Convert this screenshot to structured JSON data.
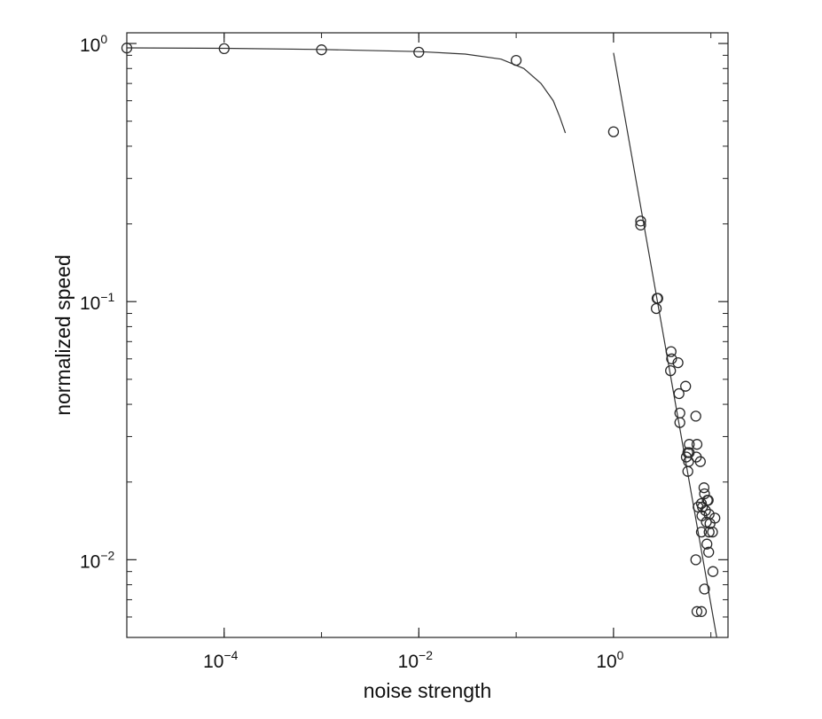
{
  "chart_data": {
    "type": "scatter",
    "title": "",
    "xlabel": "noise strength",
    "ylabel": "normalized speed",
    "x_scale": "log",
    "y_scale": "log",
    "xlim": [
      1e-05,
      15
    ],
    "ylim": [
      0.005,
      1.1
    ],
    "grid": false,
    "x_ticks": [
      {
        "value": 0.0001,
        "base": "10",
        "exp": "−4"
      },
      {
        "value": 0.01,
        "base": "10",
        "exp": "−2"
      },
      {
        "value": 1,
        "base": "10",
        "exp": "0"
      }
    ],
    "y_ticks": [
      {
        "value": 1,
        "base": "10",
        "exp": "0"
      },
      {
        "value": 0.1,
        "base": "10",
        "exp": "−1"
      },
      {
        "value": 0.01,
        "base": "10",
        "exp": "−2"
      }
    ],
    "colors": {
      "markers": "#2a2a2a",
      "lines": "#333333",
      "axes": "#222222"
    },
    "series": [
      {
        "type": "scatter",
        "marker": "open-circle",
        "points": [
          [
            1e-05,
            0.96
          ],
          [
            0.0001,
            0.955
          ],
          [
            0.001,
            0.945
          ],
          [
            0.01,
            0.925
          ],
          [
            0.1,
            0.86
          ],
          [
            1.0,
            0.455
          ],
          [
            1.9,
            0.205
          ],
          [
            1.9,
            0.198
          ],
          [
            2.8,
            0.103
          ],
          [
            2.85,
            0.103
          ],
          [
            2.75,
            0.094
          ],
          [
            3.9,
            0.064
          ],
          [
            3.95,
            0.06
          ],
          [
            3.85,
            0.054
          ],
          [
            4.6,
            0.058
          ],
          [
            5.5,
            0.047
          ],
          [
            4.7,
            0.044
          ],
          [
            4.8,
            0.037
          ],
          [
            4.8,
            0.034
          ],
          [
            7.0,
            0.036
          ],
          [
            6.0,
            0.028
          ],
          [
            5.8,
            0.026
          ],
          [
            6.0,
            0.026
          ],
          [
            7.2,
            0.028
          ],
          [
            5.6,
            0.025
          ],
          [
            5.9,
            0.024
          ],
          [
            7.1,
            0.025
          ],
          [
            7.8,
            0.024
          ],
          [
            5.8,
            0.022
          ],
          [
            8.5,
            0.019
          ],
          [
            8.6,
            0.018
          ],
          [
            9.2,
            0.017
          ],
          [
            9.4,
            0.017
          ],
          [
            7.4,
            0.016
          ],
          [
            8.0,
            0.0165
          ],
          [
            8.2,
            0.016
          ],
          [
            8.8,
            0.0155
          ],
          [
            9.6,
            0.015
          ],
          [
            8.1,
            0.0148
          ],
          [
            11.0,
            0.0145
          ],
          [
            9.0,
            0.014
          ],
          [
            9.8,
            0.0138
          ],
          [
            8.0,
            0.0128
          ],
          [
            9.6,
            0.0128
          ],
          [
            10.4,
            0.0128
          ],
          [
            9.1,
            0.0115
          ],
          [
            9.5,
            0.0107
          ],
          [
            7.0,
            0.01
          ],
          [
            10.5,
            0.009
          ],
          [
            8.6,
            0.0077
          ],
          [
            7.2,
            0.0063
          ],
          [
            8.0,
            0.0063
          ]
        ]
      },
      {
        "type": "line",
        "style": "curve",
        "points": [
          [
            1e-05,
            0.962
          ],
          [
            0.0001,
            0.958
          ],
          [
            0.001,
            0.948
          ],
          [
            0.01,
            0.93
          ],
          [
            0.03,
            0.91
          ],
          [
            0.07,
            0.87
          ],
          [
            0.12,
            0.8
          ],
          [
            0.18,
            0.7
          ],
          [
            0.24,
            0.6
          ],
          [
            0.28,
            0.52
          ],
          [
            0.32,
            0.45
          ]
        ]
      },
      {
        "type": "line",
        "style": "power-law",
        "points": [
          [
            1.0,
            0.92
          ],
          [
            11.5,
            0.005
          ]
        ]
      }
    ]
  }
}
